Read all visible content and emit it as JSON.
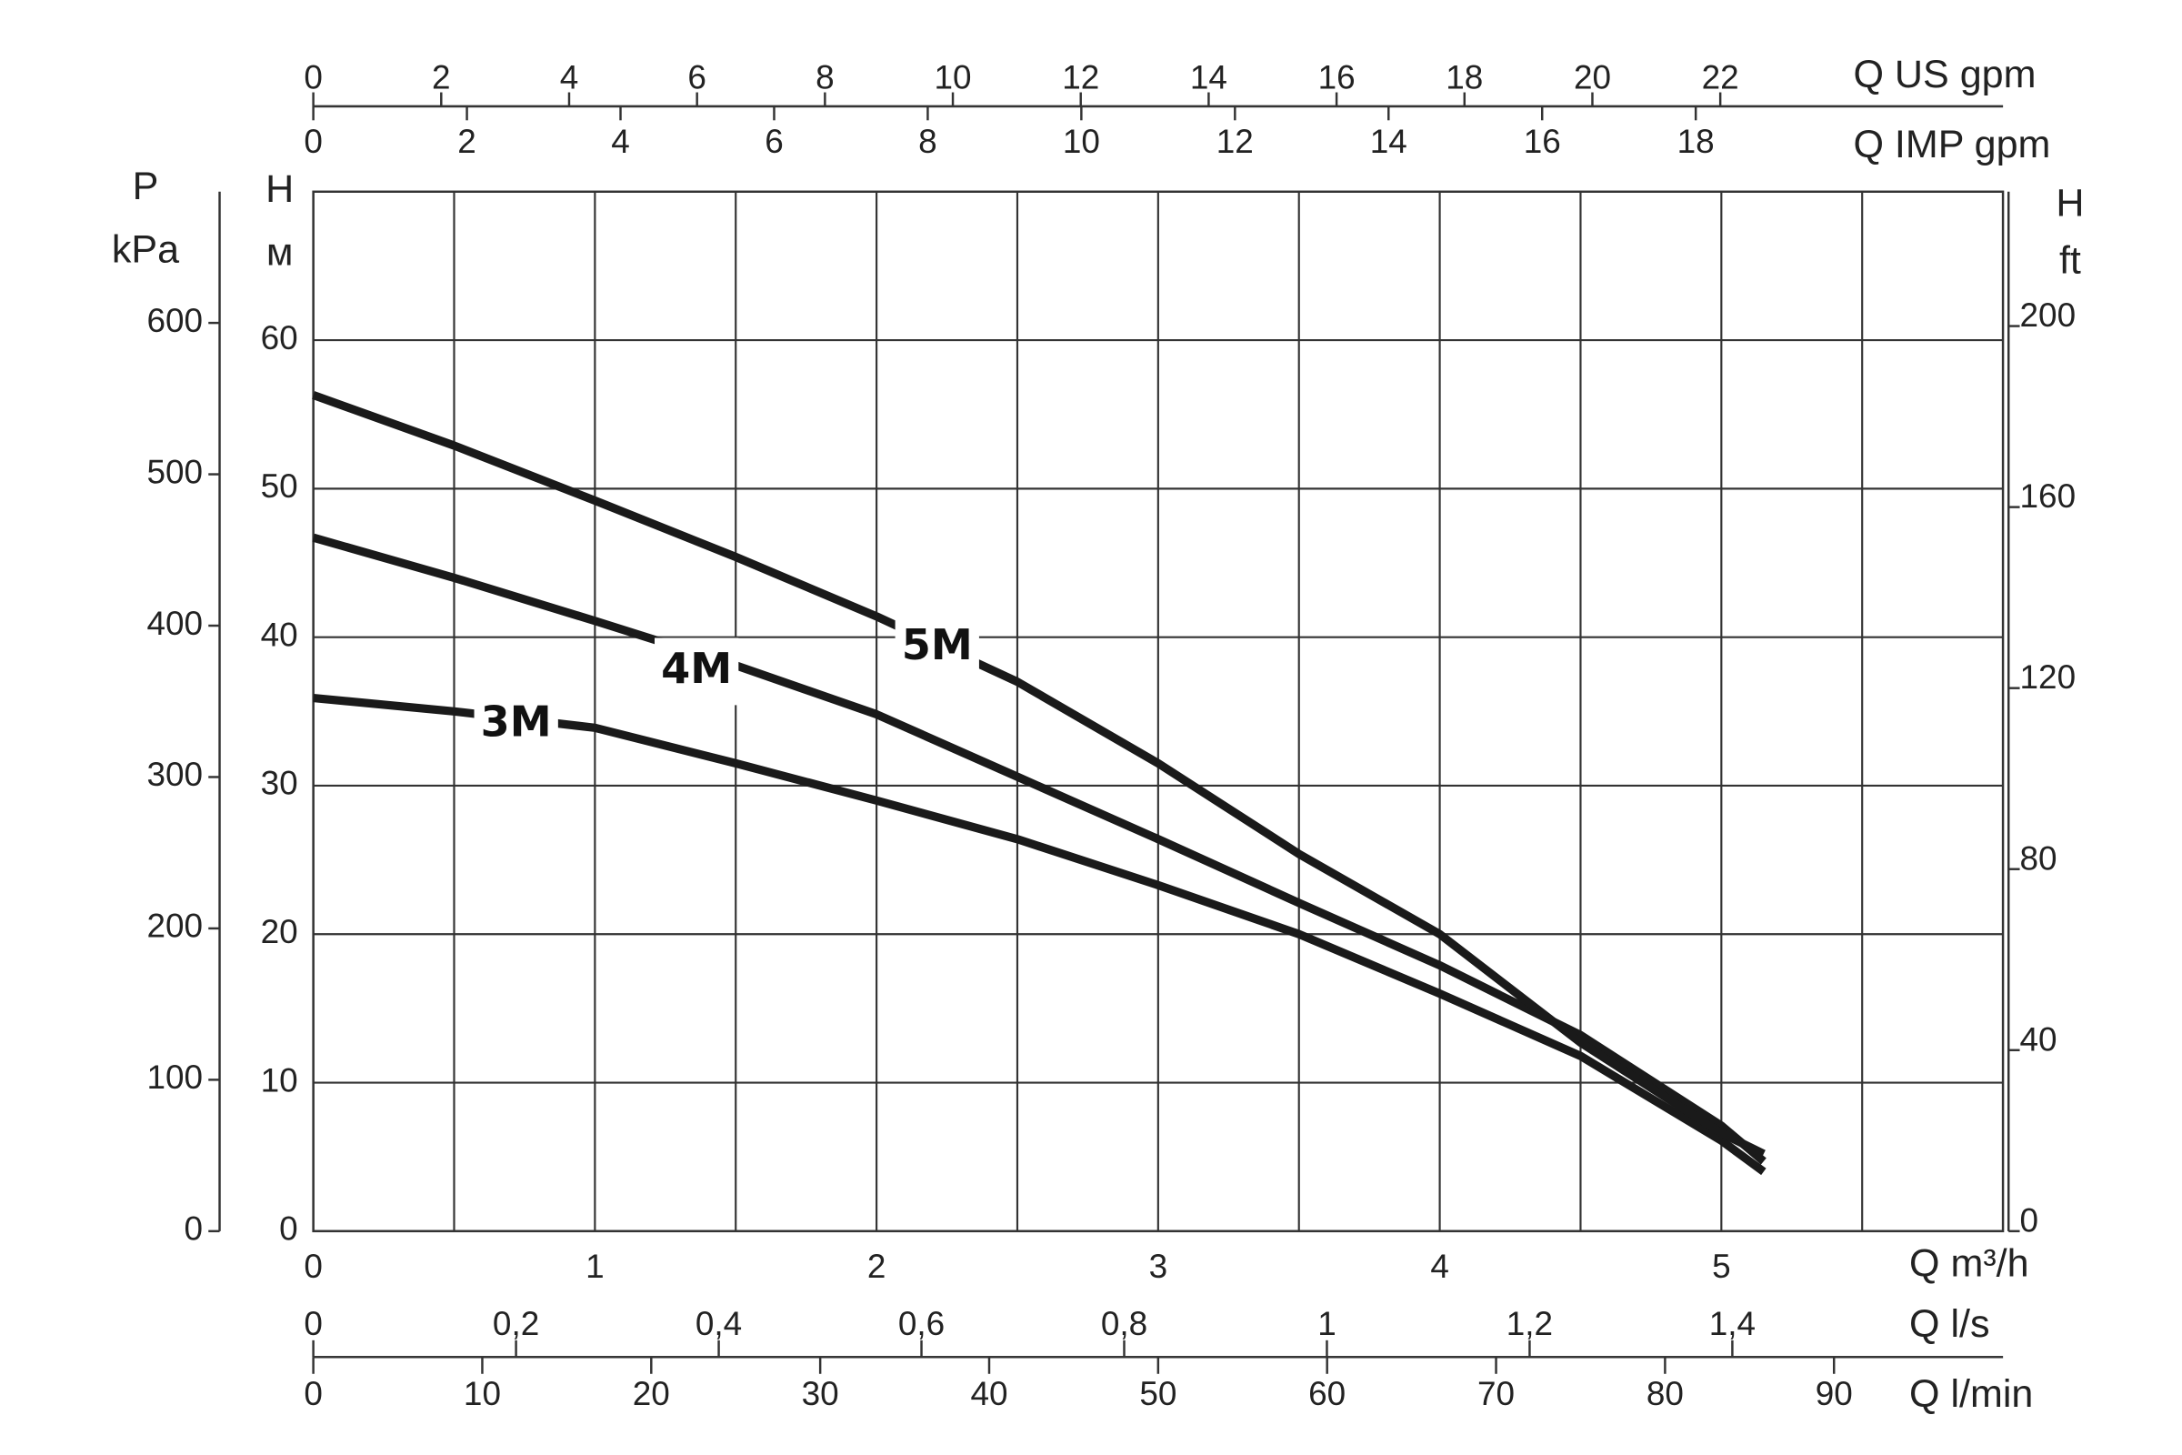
{
  "chart_data": {
    "type": "line",
    "x_label": "Q m³/h",
    "y_label": "H",
    "y_unit": "м",
    "x": [
      0,
      0.5,
      1,
      1.5,
      2,
      2.5,
      3,
      3.5,
      4,
      4.5,
      5,
      5.15
    ],
    "xlim": [
      0,
      6
    ],
    "xticks": [
      0,
      1,
      2,
      3,
      4,
      5
    ],
    "x_minor_grid": [
      0.5,
      1.5,
      2.5,
      3.5,
      4.5,
      5.5
    ],
    "ylim": [
      0,
      70
    ],
    "yticks": [
      0,
      10,
      20,
      30,
      40,
      50,
      60
    ],
    "grid": true,
    "series": [
      {
        "name": "3M",
        "color": "#1a1a1a",
        "values": [
          35.9,
          35.0,
          33.9,
          31.5,
          29.0,
          26.4,
          23.3,
          20.0,
          16.0,
          11.8,
          6.1,
          4.0
        ]
      },
      {
        "name": "4M",
        "color": "#1a1a1a",
        "values": [
          46.7,
          44.0,
          41.1,
          38.1,
          34.8,
          30.6,
          26.4,
          22.1,
          17.9,
          13.2,
          7.1,
          4.7
        ]
      },
      {
        "name": "5M",
        "color": "#1a1a1a",
        "values": [
          56.3,
          52.9,
          49.2,
          45.4,
          41.4,
          37.0,
          31.5,
          25.4,
          20.0,
          12.7,
          6.6,
          5.2
        ]
      }
    ],
    "secondary_axes": [
      {
        "position": "left",
        "label": "P",
        "unit": "kPa",
        "lim": [
          0,
          686.7
        ],
        "ticks": [
          0,
          100,
          200,
          300,
          400,
          500,
          600
        ]
      },
      {
        "position": "right",
        "label": "H",
        "unit": "ft",
        "lim": [
          0,
          229.7
        ],
        "ticks": [
          0,
          40,
          80,
          120,
          160,
          200
        ]
      },
      {
        "position": "top",
        "label": "Q US gpm",
        "lim": [
          0,
          26.42
        ],
        "ticks": [
          0,
          2,
          4,
          6,
          8,
          10,
          12,
          14,
          16,
          18,
          20,
          22
        ]
      },
      {
        "position": "top-2",
        "label": "Q IMP gpm",
        "lim": [
          0,
          22.0
        ],
        "ticks": [
          0,
          2,
          4,
          6,
          8,
          10,
          12,
          14,
          16,
          18
        ]
      },
      {
        "position": "bottom-2",
        "label": "Q l/s",
        "lim": [
          0,
          1.667
        ],
        "ticks": [
          0,
          {
            "value": 0.2,
            "label": "0,2"
          },
          {
            "value": 0.4,
            "label": "0,4"
          },
          {
            "value": 0.6,
            "label": "0,6"
          },
          {
            "value": 0.8,
            "label": "0,8"
          },
          1,
          {
            "value": 1.2,
            "label": "1,2"
          },
          {
            "value": 1.4,
            "label": "1,4"
          }
        ]
      },
      {
        "position": "bottom-3",
        "label": "Q l/min",
        "lim": [
          0,
          100
        ],
        "ticks": [
          0,
          10,
          20,
          30,
          40,
          50,
          60,
          70,
          80,
          90
        ]
      }
    ]
  }
}
